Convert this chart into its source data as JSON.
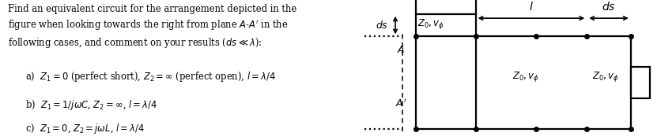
{
  "bg_color": "#ffffff",
  "text_color": "#000000",
  "circuit_color": "#000000",
  "lw": 1.6,
  "dot_size": 4.0,
  "fontsize_main": 8.3,
  "fontsize_circuit": 8.5,
  "fontsize_label": 9.5
}
